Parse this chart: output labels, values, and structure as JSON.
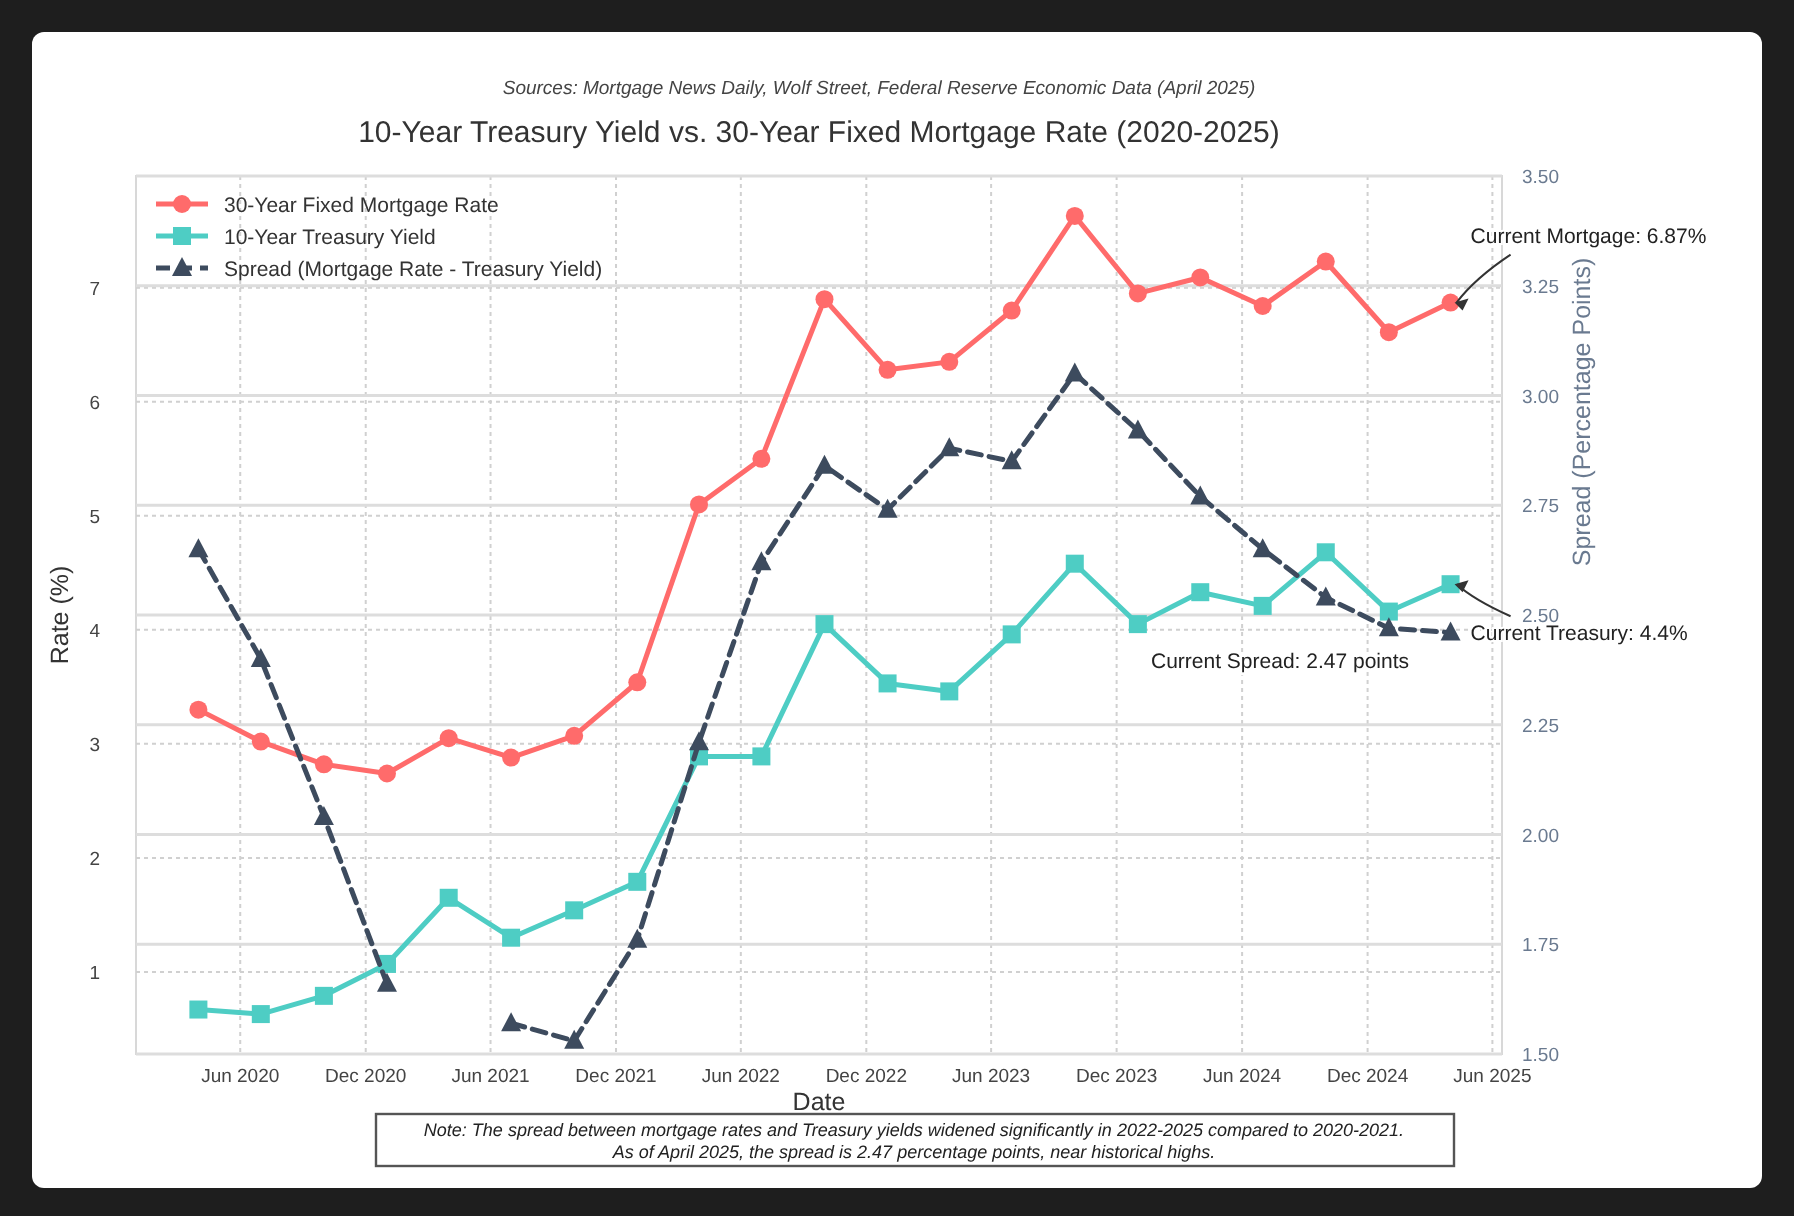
{
  "chart_data": {
    "type": "line",
    "title": "10-Year Treasury Yield vs. 30-Year Fixed Mortgage Rate (2020-2025)",
    "subtitle": "Sources: Mortgage News Daily, Wolf Street, Federal Reserve Economic Data (April 2025)",
    "xlabel": "Date",
    "ylabel": "Rate (%)",
    "y2label": "Spread (Percentage Points)",
    "x": [
      "2020-04",
      "2020-07",
      "2020-10",
      "2021-01",
      "2021-04",
      "2021-07",
      "2021-10",
      "2022-01",
      "2022-04",
      "2022-07",
      "2022-10",
      "2023-01",
      "2023-04",
      "2023-07",
      "2023-10",
      "2024-01",
      "2024-04",
      "2024-07",
      "2024-10",
      "2025-01",
      "2025-04"
    ],
    "series": [
      {
        "name": "30-Year Fixed Mortgage Rate",
        "color": "#ff6b6b",
        "marker": "circle",
        "line_style": "solid",
        "values": [
          3.3,
          3.02,
          2.82,
          2.74,
          3.05,
          2.88,
          3.07,
          3.54,
          5.1,
          5.5,
          6.9,
          6.28,
          6.35,
          6.8,
          7.63,
          6.95,
          7.09,
          6.84,
          7.23,
          6.61,
          6.87
        ]
      },
      {
        "name": "10-Year Treasury Yield",
        "color": "#4ecdc4",
        "marker": "square",
        "line_style": "solid",
        "values": [
          0.67,
          0.63,
          0.79,
          1.07,
          1.65,
          1.3,
          1.54,
          1.79,
          2.89,
          2.89,
          4.05,
          3.53,
          3.46,
          3.96,
          4.58,
          4.05,
          4.33,
          4.21,
          4.68,
          4.16,
          4.4
        ]
      },
      {
        "name": "Spread (Mortgage Rate - Treasury Yield)",
        "color": "#3d4b5e",
        "marker": "triangle",
        "line_style": "dashed",
        "axis": "y2",
        "values": [
          2.65,
          2.4,
          2.04,
          1.66,
          null,
          1.57,
          1.53,
          1.76,
          2.21,
          2.62,
          2.84,
          2.74,
          2.88,
          2.85,
          3.05,
          2.92,
          2.77,
          2.65,
          2.54,
          2.47,
          2.46
        ]
      }
    ],
    "xlim": [
      "2020-01-01",
      "2025-06-15"
    ],
    "xticks": [
      {
        "value": "2020-06-01",
        "label": "Jun 2020"
      },
      {
        "value": "2020-12-01",
        "label": "Dec 2020"
      },
      {
        "value": "2021-06-01",
        "label": "Jun 2021"
      },
      {
        "value": "2021-12-01",
        "label": "Dec 2021"
      },
      {
        "value": "2022-06-01",
        "label": "Jun 2022"
      },
      {
        "value": "2022-12-01",
        "label": "Dec 2022"
      },
      {
        "value": "2023-06-01",
        "label": "Jun 2023"
      },
      {
        "value": "2023-12-01",
        "label": "Dec 2023"
      },
      {
        "value": "2024-06-01",
        "label": "Jun 2024"
      },
      {
        "value": "2024-12-01",
        "label": "Dec 2024"
      },
      {
        "value": "2025-06-01",
        "label": "Jun 2025"
      }
    ],
    "ylim": [
      0.28,
      7.98
    ],
    "yticks": [
      1,
      2,
      3,
      4,
      5,
      6,
      7
    ],
    "y2lim": [
      1.5,
      3.5
    ],
    "y2ticks": [
      {
        "value": 1.5,
        "label": "1.50"
      },
      {
        "value": 1.75,
        "label": "1.75"
      },
      {
        "value": 2,
        "label": "2.00"
      },
      {
        "value": 2.25,
        "label": "2.25"
      },
      {
        "value": 2.5,
        "label": "2.50"
      },
      {
        "value": 2.75,
        "label": "2.75"
      },
      {
        "value": 3,
        "label": "3.00"
      },
      {
        "value": 3.25,
        "label": "3.25"
      },
      {
        "value": 3.5,
        "label": "3.50"
      }
    ],
    "grid": true,
    "legend": "top left",
    "annotations": [
      {
        "text": "Current Mortgage: 6.87%",
        "x": "2025-04",
        "y": 6.87
      },
      {
        "text": "Current Treasury: 4.4%",
        "x": "2025-04",
        "y": 4.4
      },
      "Current Spread: 2.47 points",
      "Note: The spread between mortgage rates and Treasury yields widened significantly in 2022-2025 compared to 2020-2021.\nAs of April 2025, the spread is 2.47 percentage points, near historical highs."
    ]
  }
}
